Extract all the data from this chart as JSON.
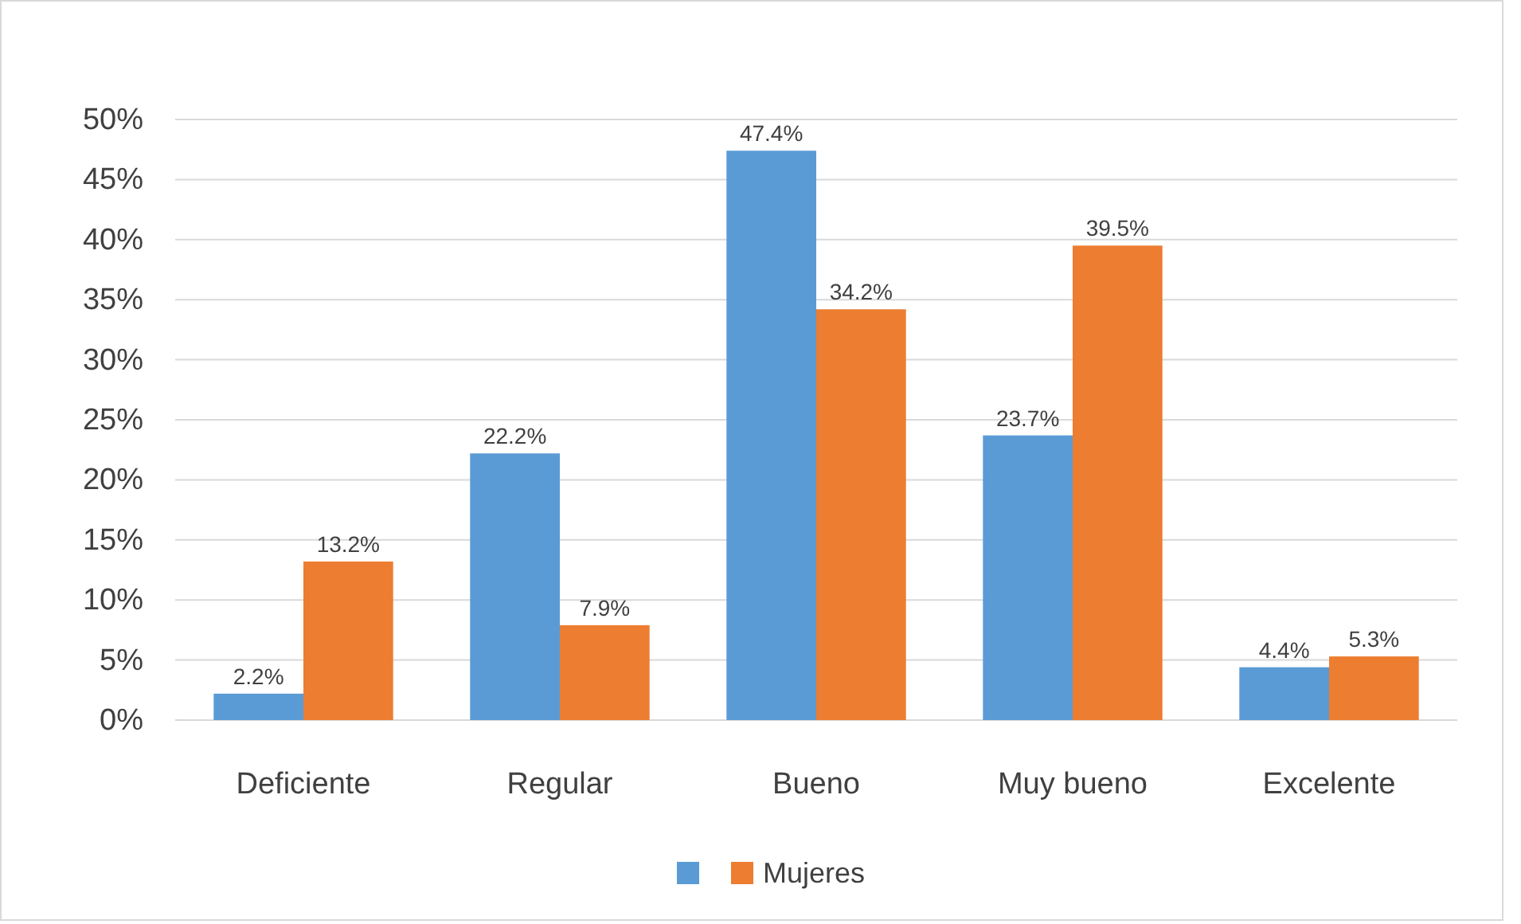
{
  "chart_data": {
    "type": "bar",
    "categories": [
      "Deficiente",
      "Regular",
      "Bueno",
      "Muy bueno",
      "Excelente"
    ],
    "series": [
      {
        "color": "#5b9bd5",
        "values": [
          2.2,
          22.2,
          47.4,
          23.7,
          4.4
        ],
        "value_labels": [
          "2.2%",
          "22.2%",
          "47.4%",
          "23.7%",
          "4.4%"
        ]
      },
      {
        "name": "Mujeres",
        "color": "#ed7d31",
        "values": [
          13.2,
          7.9,
          34.2,
          39.5,
          5.3
        ],
        "value_labels": [
          "13.2%",
          "7.9%",
          "34.2%",
          "39.5%",
          "5.3%"
        ]
      }
    ],
    "ylim": [
      0,
      50
    ],
    "yticks": [
      {
        "value": 0,
        "label": "0%"
      },
      {
        "value": 5,
        "label": "5%"
      },
      {
        "value": 10,
        "label": "10%"
      },
      {
        "value": 15,
        "label": "15%"
      },
      {
        "value": 20,
        "label": "20%"
      },
      {
        "value": 25,
        "label": "25%"
      },
      {
        "value": 30,
        "label": "30%"
      },
      {
        "value": 35,
        "label": "35%"
      },
      {
        "value": 40,
        "label": "40%"
      },
      {
        "value": 45,
        "label": "45%"
      },
      {
        "value": 50,
        "label": "50%"
      }
    ],
    "grid": "y",
    "legend": "bottom"
  }
}
